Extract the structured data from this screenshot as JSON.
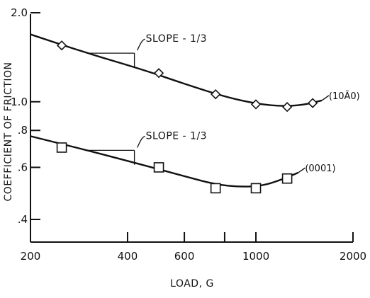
{
  "chart_data": {
    "type": "line",
    "title": "",
    "xlabel": "LOAD, G",
    "ylabel": "COEFFICIENT OF FRICTION",
    "x_scale": "log",
    "y_scale": "log",
    "xlim": [
      200,
      2000
    ],
    "ylim": [
      0.32,
      2.0
    ],
    "x_ticks": [
      {
        "value": 200,
        "label": "200"
      },
      {
        "value": 400,
        "label": "400"
      },
      {
        "value": 600,
        "label": "600"
      },
      {
        "value": 800,
        "label": ""
      },
      {
        "value": 1000,
        "label": "1000"
      },
      {
        "value": 2000,
        "label": "2000"
      }
    ],
    "y_ticks": [
      {
        "value": 2.0,
        "label": "2.0"
      },
      {
        "value": 1.0,
        "label": "1.0"
      },
      {
        "value": 0.8,
        "label": ".8"
      },
      {
        "value": 0.6,
        "label": ".6"
      },
      {
        "value": 0.4,
        "label": ".4"
      }
    ],
    "grid": false,
    "series": [
      {
        "name": "(10Ā0)",
        "marker": "diamond",
        "points": [
          {
            "x": 250,
            "y": 1.55
          },
          {
            "x": 500,
            "y": 1.25
          },
          {
            "x": 750,
            "y": 1.06
          },
          {
            "x": 1000,
            "y": 0.98
          },
          {
            "x": 1250,
            "y": 0.96
          },
          {
            "x": 1500,
            "y": 0.99
          }
        ],
        "curve": [
          {
            "x": 200,
            "y": 1.69
          },
          {
            "x": 300,
            "y": 1.46
          },
          {
            "x": 450,
            "y": 1.28
          },
          {
            "x": 600,
            "y": 1.15
          },
          {
            "x": 800,
            "y": 1.04
          },
          {
            "x": 1000,
            "y": 0.985
          },
          {
            "x": 1200,
            "y": 0.965
          },
          {
            "x": 1400,
            "y": 0.975
          },
          {
            "x": 1600,
            "y": 1.01
          }
        ]
      },
      {
        "name": "(0001)",
        "marker": "square",
        "points": [
          {
            "x": 250,
            "y": 0.7
          },
          {
            "x": 500,
            "y": 0.6
          },
          {
            "x": 750,
            "y": 0.51
          },
          {
            "x": 1000,
            "y": 0.51
          },
          {
            "x": 1250,
            "y": 0.55
          }
        ],
        "curve": [
          {
            "x": 200,
            "y": 0.765
          },
          {
            "x": 300,
            "y": 0.685
          },
          {
            "x": 450,
            "y": 0.61
          },
          {
            "x": 600,
            "y": 0.56
          },
          {
            "x": 750,
            "y": 0.525
          },
          {
            "x": 900,
            "y": 0.515
          },
          {
            "x": 1050,
            "y": 0.52
          },
          {
            "x": 1200,
            "y": 0.545
          },
          {
            "x": 1350,
            "y": 0.575
          }
        ]
      }
    ],
    "annotations": [
      {
        "text": "SLOPE - 1/3",
        "triangle": {
          "x0": 300,
          "x1": 420,
          "y0": 1.46
        }
      },
      {
        "text": "SLOPE - 1/3",
        "triangle": {
          "x0": 300,
          "x1": 420,
          "y0": 0.685
        }
      }
    ]
  }
}
